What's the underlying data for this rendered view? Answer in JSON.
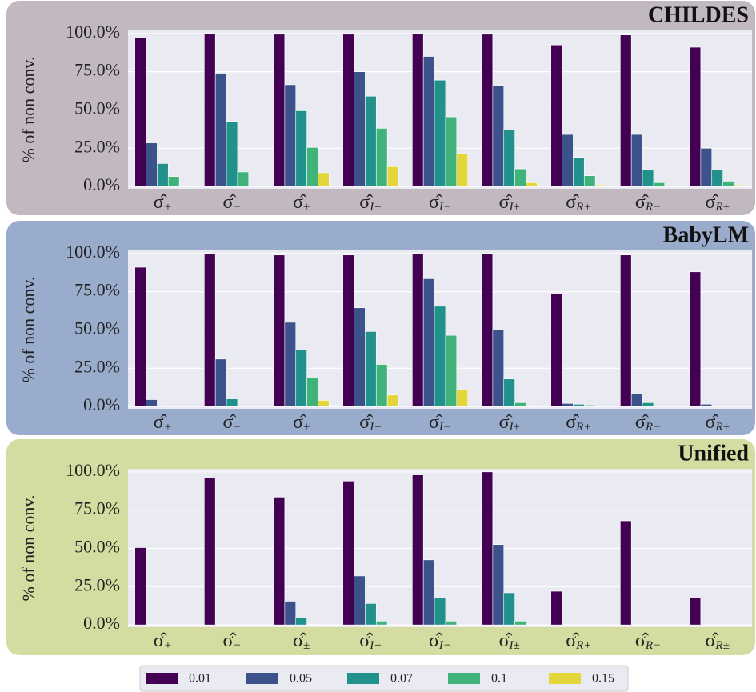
{
  "chart_data": [
    {
      "type": "bar",
      "title": "CHILDES",
      "ylabel": "% of non conv.",
      "panel_color": "#c1b9bf",
      "categories": [
        "σ̂+",
        "σ̂−",
        "σ̂±",
        "σ̂I+",
        "σ̂I−",
        "σ̂I±",
        "σ̂R+",
        "σ̂R−",
        "σ̂R±"
      ],
      "series": [
        {
          "name": "0.01",
          "color": "#440154",
          "values": [
            97,
            100,
            99.5,
            99.5,
            100,
            99.5,
            92.5,
            99,
            91
          ]
        },
        {
          "name": "0.05",
          "color": "#3b528b",
          "values": [
            28.5,
            74,
            66.5,
            75,
            85,
            66,
            34,
            34,
            25
          ]
        },
        {
          "name": "0.07",
          "color": "#21918c",
          "values": [
            15,
            42.5,
            49.5,
            59,
            69.5,
            37,
            19,
            11,
            11
          ]
        },
        {
          "name": "0.1",
          "color": "#3fb37a",
          "values": [
            6.5,
            9.5,
            25.5,
            38,
            45.5,
            11.5,
            7,
            2.5,
            3.5
          ]
        },
        {
          "name": "0.15",
          "color": "#e3d63a",
          "values": [
            0.5,
            0,
            9,
            13,
            21.5,
            2.5,
            1,
            0.3,
            1
          ]
        }
      ],
      "ylim": [
        -1.5,
        102
      ],
      "yticks": [
        {
          "value": 0,
          "label": "0.0%"
        },
        {
          "value": 25,
          "label": "25.0%"
        },
        {
          "value": 50,
          "label": "50.0%"
        },
        {
          "value": 75,
          "label": "75.0%"
        },
        {
          "value": 100,
          "label": "100.0%"
        }
      ],
      "grid": true
    },
    {
      "type": "bar",
      "title": "BabyLM",
      "ylabel": "% of non conv.",
      "panel_color": "#9aaccb",
      "categories": [
        "σ̂+",
        "σ̂−",
        "σ̂±",
        "σ̂I+",
        "σ̂I−",
        "σ̂I±",
        "σ̂R+",
        "σ̂R−",
        "σ̂R±"
      ],
      "series": [
        {
          "color": "#440154",
          "values": [
            91,
            100,
            99,
            99,
            100,
            100,
            73.5,
            99,
            88
          ]
        },
        {
          "color": "#3b528b",
          "values": [
            4.5,
            31,
            55,
            64.5,
            83.5,
            50,
            2,
            8.5,
            1.5
          ]
        },
        {
          "color": "#21918c",
          "values": [
            0.5,
            5,
            37,
            49,
            65.5,
            18,
            1.5,
            2.5,
            0
          ]
        },
        {
          "color": "#3fb37a",
          "values": [
            0,
            0,
            18.5,
            27.5,
            46.5,
            2.5,
            1,
            0,
            0
          ]
        },
        {
          "color": "#e3d63a",
          "values": [
            0,
            0,
            4,
            7.5,
            11,
            0.5,
            0,
            0,
            0
          ]
        }
      ],
      "ylim": [
        -1.5,
        102
      ],
      "yticks": [
        {
          "value": 0,
          "label": "0.0%"
        },
        {
          "value": 25,
          "label": "25.0%"
        },
        {
          "value": 50,
          "label": "50.0%"
        },
        {
          "value": 75,
          "label": "75.0%"
        },
        {
          "value": 100,
          "label": "100.0%"
        }
      ],
      "grid": true
    },
    {
      "type": "bar",
      "title": "Unified",
      "ylabel": "% of non conv.",
      "panel_color": "#d5dca1",
      "categories": [
        "σ̂+",
        "σ̂−",
        "σ̂±",
        "σ̂I+",
        "σ̂I−",
        "σ̂I±",
        "σ̂R+",
        "σ̂R−",
        "σ̂R±"
      ],
      "series": [
        {
          "color": "#440154",
          "values": [
            50.5,
            96,
            83.5,
            94,
            98,
            100,
            22,
            68,
            17.5
          ]
        },
        {
          "color": "#3b528b",
          "values": [
            0,
            0,
            15.5,
            32,
            42.5,
            52.5,
            0,
            0,
            0
          ]
        },
        {
          "color": "#21918c",
          "values": [
            0,
            0,
            5,
            14,
            17.5,
            21,
            0,
            0,
            0
          ]
        },
        {
          "color": "#3fb37a",
          "values": [
            0,
            0,
            0.3,
            2.5,
            2.5,
            2.5,
            0,
            0,
            0
          ]
        },
        {
          "color": "#e3d63a",
          "values": [
            0,
            0,
            0,
            0,
            0,
            0,
            0,
            0,
            0
          ]
        }
      ],
      "ylim": [
        -1.5,
        102
      ],
      "yticks": [
        {
          "value": 0,
          "label": "0.0%"
        },
        {
          "value": 25,
          "label": "25.0%"
        },
        {
          "value": 50,
          "label": "50.0%"
        },
        {
          "value": 75,
          "label": "75.0%"
        },
        {
          "value": 100,
          "label": "100.0%"
        }
      ],
      "grid": true
    }
  ]
}
